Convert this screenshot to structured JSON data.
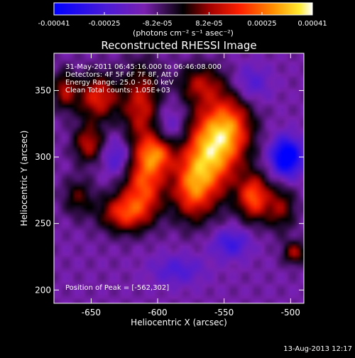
{
  "chart_data": {
    "type": "heatmap",
    "title": "Reconstructed RHESSI Image",
    "xlabel": "Heliocentric X (arcsec)",
    "ylabel": "Heliocentric Y (arcsec)",
    "xlim": [
      -678,
      -490
    ],
    "ylim": [
      190,
      378
    ],
    "x_ticks": [
      -650,
      -600,
      -550,
      -500
    ],
    "y_ticks": [
      200,
      250,
      300,
      350
    ],
    "colorbar": {
      "colormap": "red-temperature-with-blue",
      "min": -0.00041,
      "max": 0.00041,
      "ticks": [
        "-0.00041",
        "-0.00025",
        "-8.2e-05",
        "8.2e-05",
        "0.00025",
        "0.00041"
      ],
      "tick_values": [
        -0.00041,
        -0.00025,
        -8.2e-05,
        8.2e-05,
        0.00025,
        0.00041
      ],
      "units_label": "(photons cm⁻² s⁻¹ asec⁻²)"
    },
    "annotations": [
      "31-May-2011 06:45:16.000 to 06:46:08.000",
      "Detectors: 4F 5F 6F 7F 8F, Att 0",
      "Energy Range: 25.0 - 50.0 keV",
      "Clean    Total counts: 1.05E+03",
      "Position of Peak = [-562,302]"
    ],
    "peak": {
      "x": -562,
      "y": 302
    },
    "sources": [
      {
        "x": -562,
        "y": 302,
        "sigma_x": 14,
        "sigma_y": 24,
        "amp": 1.0
      },
      {
        "x": -545,
        "y": 322,
        "sigma_x": 12,
        "sigma_y": 18,
        "amp": 0.7
      },
      {
        "x": -575,
        "y": 275,
        "sigma_x": 10,
        "sigma_y": 16,
        "amp": 0.6
      },
      {
        "x": -610,
        "y": 280,
        "sigma_x": 11,
        "sigma_y": 16,
        "amp": 0.75
      },
      {
        "x": -600,
        "y": 303,
        "sigma_x": 10,
        "sigma_y": 10,
        "amp": 0.75
      },
      {
        "x": -625,
        "y": 258,
        "sigma_x": 13,
        "sigma_y": 10,
        "amp": 0.7
      },
      {
        "x": -612,
        "y": 338,
        "sigma_x": 10,
        "sigma_y": 22,
        "amp": 0.6
      },
      {
        "x": -645,
        "y": 345,
        "sigma_x": 11,
        "sigma_y": 12,
        "amp": 0.65
      },
      {
        "x": -652,
        "y": 310,
        "sigma_x": 8,
        "sigma_y": 10,
        "amp": 0.55
      },
      {
        "x": -528,
        "y": 270,
        "sigma_x": 8,
        "sigma_y": 12,
        "amp": 0.8
      },
      {
        "x": -508,
        "y": 262,
        "sigma_x": 8,
        "sigma_y": 12,
        "amp": 0.45
      },
      {
        "x": -497,
        "y": 228,
        "sigma_x": 6,
        "sigma_y": 6,
        "amp": 0.5
      },
      {
        "x": -568,
        "y": 355,
        "sigma_x": 12,
        "sigma_y": 10,
        "amp": 0.45
      },
      {
        "x": -670,
        "y": 350,
        "sigma_x": 6,
        "sigma_y": 10,
        "amp": 0.5
      },
      {
        "x": -660,
        "y": 270,
        "sigma_x": 8,
        "sigma_y": 10,
        "amp": 0.35
      },
      {
        "x": -545,
        "y": 235,
        "sigma_x": 10,
        "sigma_y": 8,
        "amp": -0.4
      },
      {
        "x": -503,
        "y": 300,
        "sigma_x": 8,
        "sigma_y": 10,
        "amp": -0.9
      },
      {
        "x": -590,
        "y": 320,
        "sigma_x": 10,
        "sigma_y": 14,
        "amp": -0.3
      },
      {
        "x": -630,
        "y": 300,
        "sigma_x": 8,
        "sigma_y": 10,
        "amp": -0.35
      },
      {
        "x": -585,
        "y": 215,
        "sigma_x": 14,
        "sigma_y": 8,
        "amp": -0.3
      },
      {
        "x": -530,
        "y": 355,
        "sigma_x": 10,
        "sigma_y": 10,
        "amp": -0.3
      }
    ]
  },
  "footer": {
    "timestamp": "13-Aug-2013 12:17"
  },
  "colors": {
    "background": "#000000",
    "text": "#ffffff"
  }
}
